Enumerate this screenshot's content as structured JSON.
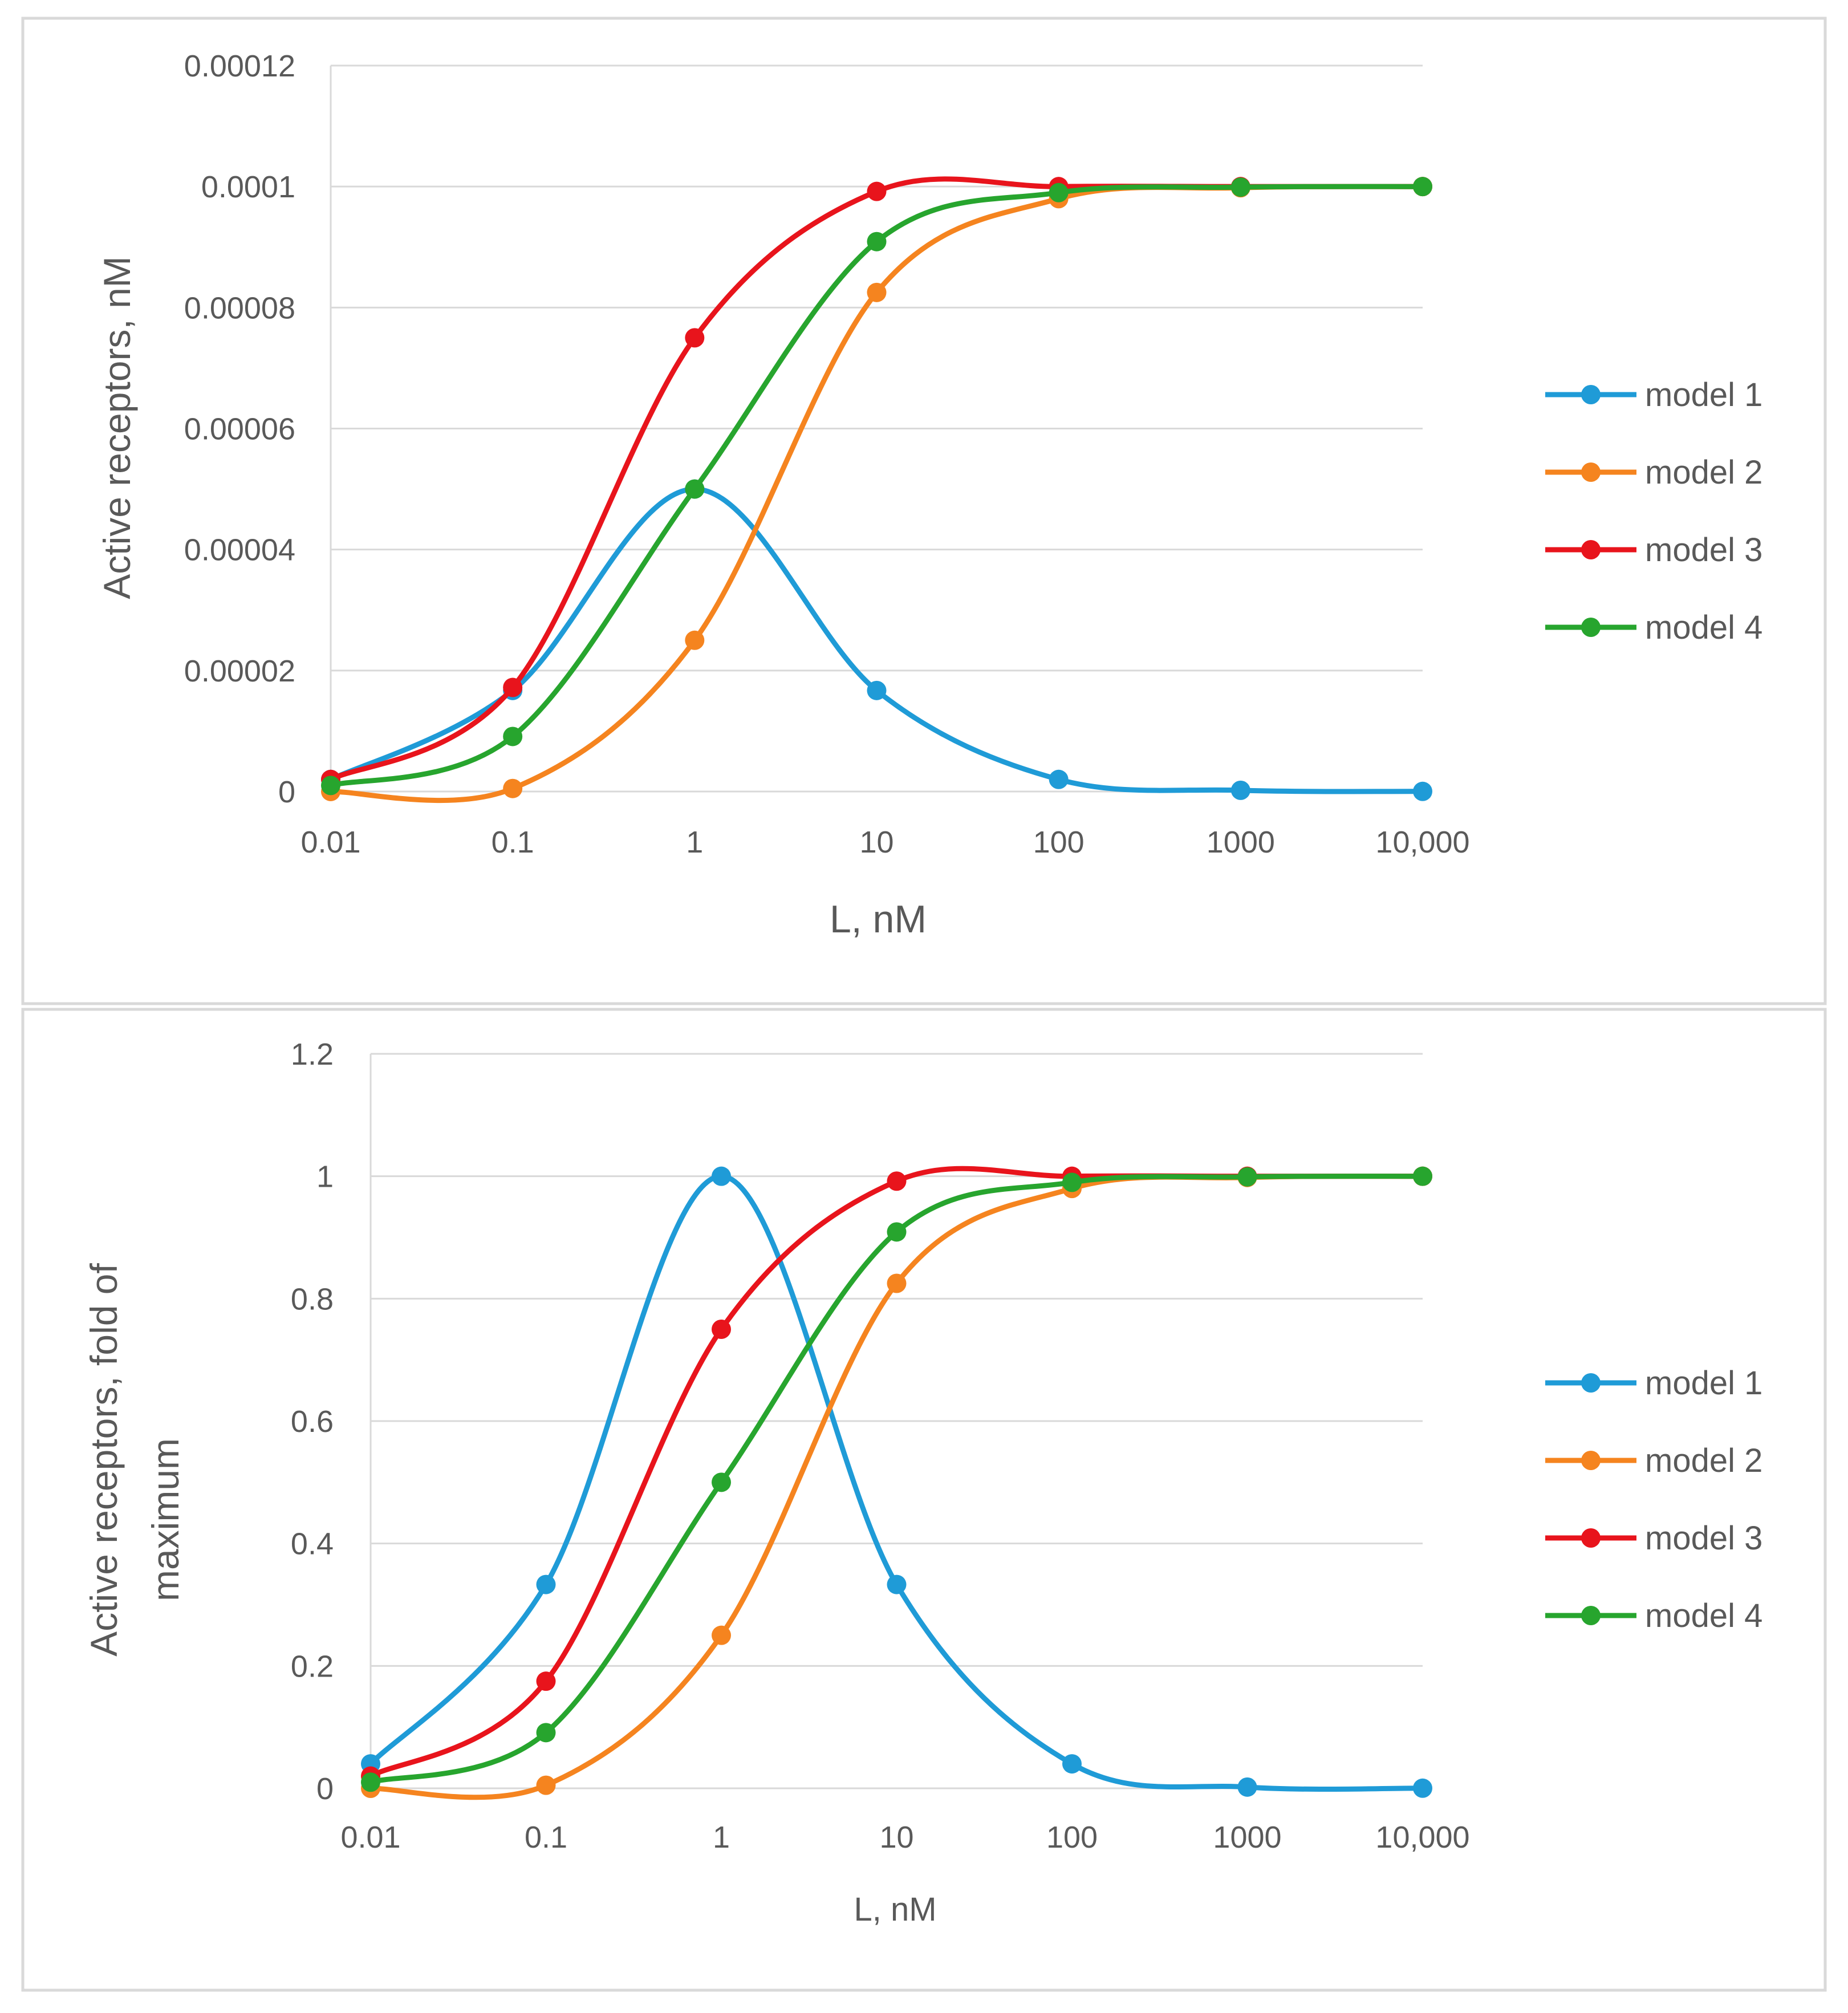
{
  "chart_data": [
    {
      "type": "line",
      "x": [
        0.01,
        0.1,
        1,
        10,
        100,
        1000,
        10000
      ],
      "x_tick_labels": [
        "0.01",
        "0.1",
        "1",
        "10",
        "100",
        "1000",
        "10,000"
      ],
      "y_tick_labels": [
        "0",
        "0.00002",
        "0.00004",
        "0.00006",
        "0.00008",
        "0.0001",
        "0.00012"
      ],
      "ylim": [
        0,
        0.00012
      ],
      "y_tick_step": 2e-05,
      "xscale": "log",
      "grid": true,
      "xlabel": "L, nM",
      "ylabel": "Active receptors, nM",
      "legend_position": "right",
      "series": [
        {
          "name": "model 1",
          "color": "#1f9bd7",
          "x": [
            0.01,
            0.1,
            1,
            10,
            100,
            1000,
            10000
          ],
          "values": [
            2e-06,
            1.67e-05,
            5e-05,
            1.67e-05,
            2e-06,
            2e-07,
            2e-08
          ]
        },
        {
          "name": "model 2",
          "color": "#f5841f",
          "x": [
            0.01,
            0.1,
            1,
            10,
            100,
            1000,
            10000
          ],
          "values": [
            2.5e-09,
            5e-07,
            2.5e-05,
            8.25e-05,
            9.8e-05,
            9.98e-05,
            0.0001
          ]
        },
        {
          "name": "model 3",
          "color": "#e8141c",
          "x": [
            0.01,
            0.1,
            1,
            10,
            100,
            1000,
            10000
          ],
          "values": [
            2e-06,
            1.72e-05,
            7.5e-05,
            9.92e-05,
            0.0001,
            0.0001,
            0.0001
          ]
        },
        {
          "name": "model 4",
          "color": "#27a52e",
          "x": [
            0.01,
            0.1,
            1,
            10,
            100,
            1000,
            10000
          ],
          "values": [
            1e-06,
            9.1e-06,
            5e-05,
            9.09e-05,
            9.9e-05,
            9.99e-05,
            0.0001
          ]
        }
      ]
    },
    {
      "type": "line",
      "x": [
        0.01,
        0.1,
        1,
        10,
        100,
        1000,
        10000
      ],
      "x_tick_labels": [
        "0.01",
        "0.1",
        "1",
        "10",
        "100",
        "1000",
        "10,000"
      ],
      "y_tick_labels": [
        "0",
        "0.2",
        "0.4",
        "0.6",
        "0.8",
        "1",
        "1.2"
      ],
      "ylim": [
        0,
        1.2
      ],
      "y_tick_step": 0.2,
      "xscale": "log",
      "grid": true,
      "xlabel": "L, nM",
      "ylabel_lines": [
        "Active receptors, fold of",
        "maximum"
      ],
      "legend_position": "right",
      "series": [
        {
          "name": "model 1",
          "color": "#1f9bd7",
          "x": [
            0.01,
            0.1,
            1,
            10,
            100,
            1000,
            10000
          ],
          "values": [
            0.04,
            0.333,
            1.0,
            0.333,
            0.04,
            0.002,
            0.0002
          ]
        },
        {
          "name": "model 2",
          "color": "#f5841f",
          "x": [
            0.01,
            0.1,
            1,
            10,
            100,
            1000,
            10000
          ],
          "values": [
            0.0,
            0.005,
            0.25,
            0.825,
            0.98,
            0.998,
            1.0
          ]
        },
        {
          "name": "model 3",
          "color": "#e8141c",
          "x": [
            0.01,
            0.1,
            1,
            10,
            100,
            1000,
            10000
          ],
          "values": [
            0.02,
            0.175,
            0.75,
            0.992,
            1.0,
            1.0,
            1.0
          ]
        },
        {
          "name": "model 4",
          "color": "#27a52e",
          "x": [
            0.01,
            0.1,
            1,
            10,
            100,
            1000,
            10000
          ],
          "values": [
            0.01,
            0.091,
            0.5,
            0.909,
            0.99,
            0.999,
            1.0
          ]
        }
      ]
    }
  ]
}
